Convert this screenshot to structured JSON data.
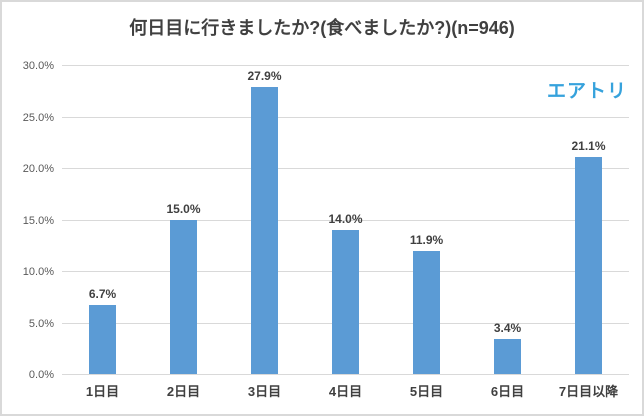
{
  "chart_data": {
    "type": "bar",
    "title": "何日目に行きましたか?(食べましたか?)(n=946)",
    "categories": [
      "1日目",
      "2日目",
      "3日目",
      "4日目",
      "5日目",
      "6日目",
      "7日目以降"
    ],
    "values": [
      6.7,
      15.0,
      27.9,
      14.0,
      11.9,
      3.4,
      21.1
    ],
    "value_labels": [
      "6.7%",
      "15.0%",
      "27.9%",
      "14.0%",
      "11.9%",
      "3.4%",
      "21.1%"
    ],
    "xlabel": "",
    "ylabel": "",
    "ylim": [
      0,
      30
    ],
    "yticks": [
      0,
      5,
      10,
      15,
      20,
      25,
      30
    ],
    "ytick_labels": [
      "0.0%",
      "5.0%",
      "10.0%",
      "15.0%",
      "20.0%",
      "25.0%",
      "30.0%"
    ],
    "grid": true,
    "legend": "none"
  },
  "logo": {
    "text": "エアトリ",
    "color": "#36A2DC"
  },
  "colors": {
    "bar": "#5B9BD5",
    "gridline": "#D9D9D9",
    "baseline": "#D9D9D9",
    "border": "#D9D9D9",
    "title_text": "#404040",
    "label_text": "#404040",
    "axis_text": "#595959"
  }
}
